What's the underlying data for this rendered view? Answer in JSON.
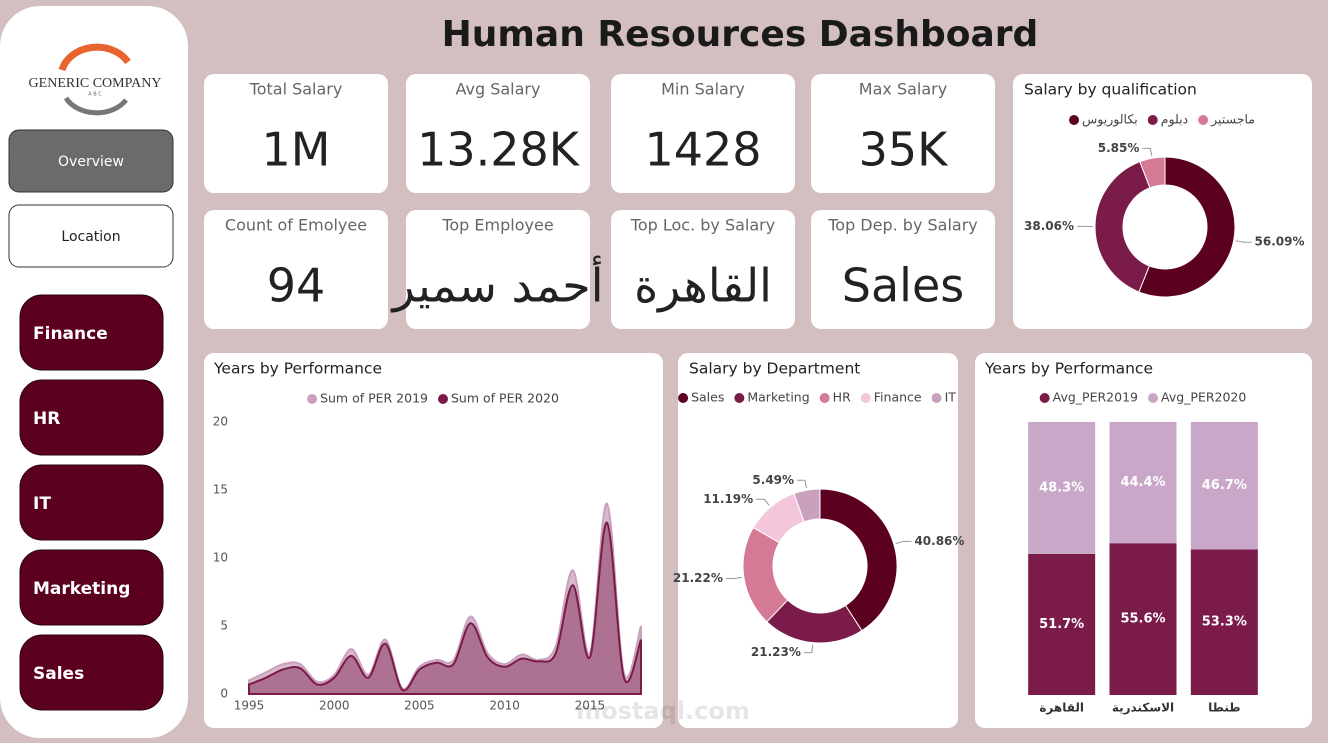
{
  "header": {
    "title": "Human Resources Dashboard"
  },
  "logo": {
    "name": "GENERIC COMPANY",
    "tagline": "A B C"
  },
  "nav": {
    "views": [
      "Overview",
      "Location"
    ],
    "departments": [
      "Finance",
      "HR",
      "IT",
      "Marketing",
      "Sales"
    ]
  },
  "kpis": [
    {
      "label": "Total Salary",
      "value": "1M"
    },
    {
      "label": "Avg Salary",
      "value": "13.28K"
    },
    {
      "label": "Min Salary",
      "value": 1428
    },
    {
      "label": "Max Salary",
      "value": "35K"
    },
    {
      "label": "Count of Emolyee",
      "value": 94
    },
    {
      "label": "Top Employee",
      "value": "أحمد سمير"
    },
    {
      "label": "Top Loc. by Salary",
      "value": "القاهرة"
    },
    {
      "label": "Top Dep. by Salary",
      "value": "Sales"
    }
  ],
  "watermark": "mostaql.com",
  "chart_data": [
    {
      "type": "pie",
      "donut": true,
      "title": "Salary by qualification",
      "categories": [
        "بكالوريوس",
        "دبلوم",
        "ماجستير"
      ],
      "values": [
        56.09,
        38.06,
        5.85
      ],
      "value_labels": [
        "56.09%",
        "38.06%",
        "5.85%"
      ],
      "colors": [
        "#5c0020",
        "#7a1b4a",
        "#d47a95"
      ]
    },
    {
      "type": "area",
      "title": "Years by Performance",
      "x": [
        1995,
        1996,
        1997,
        1998,
        1999,
        2000,
        2001,
        2002,
        2003,
        2004,
        2005,
        2006,
        2007,
        2008,
        2009,
        2010,
        2011,
        2012,
        2013,
        2014,
        2015,
        2016,
        2017,
        2018
      ],
      "xlim": [
        1995,
        2018
      ],
      "xticks": [
        1995,
        2000,
        2005,
        2010,
        2015
      ],
      "ylim": [
        0,
        20
      ],
      "yticks": [
        0,
        5,
        10,
        15,
        20
      ],
      "series": [
        {
          "name": "Sum of PER 2019",
          "color": "#c9a0bd",
          "values": [
            1.0,
            1.6,
            2.2,
            2.2,
            0.9,
            1.4,
            3.3,
            1.4,
            4.0,
            0.4,
            2.0,
            2.5,
            2.5,
            5.7,
            3.0,
            2.2,
            2.9,
            2.5,
            3.5,
            9.1,
            3.0,
            14.0,
            1.5,
            5.0
          ]
        },
        {
          "name": "Sum of PER 2020",
          "color": "#7a1b4a",
          "values": [
            0.7,
            1.2,
            1.8,
            1.9,
            0.7,
            1.2,
            2.8,
            1.2,
            3.7,
            0.3,
            1.8,
            2.3,
            2.2,
            5.2,
            2.7,
            2.0,
            2.6,
            2.4,
            3.0,
            8.0,
            2.7,
            12.6,
            1.2,
            4.0
          ]
        }
      ]
    },
    {
      "type": "pie",
      "donut": true,
      "title": "Salary by Department",
      "categories": [
        "Sales",
        "Marketing",
        "HR",
        "Finance",
        "IT"
      ],
      "values": [
        40.86,
        21.23,
        21.22,
        11.19,
        5.49
      ],
      "value_labels": [
        "40.86%",
        "21.23%",
        "21.22%",
        "11.19%",
        "5.49%"
      ],
      "colors": [
        "#5c0020",
        "#7a1b4a",
        "#d47a95",
        "#f3c6dc",
        "#c9a0bd"
      ]
    },
    {
      "type": "bar",
      "stacked": true,
      "title": "Years by Performance",
      "categories": [
        "القاهرة",
        "الاسكندرية",
        "طنطا"
      ],
      "ylim": [
        0,
        100
      ],
      "series": [
        {
          "name": "Avg_PER2019",
          "color": "#7a1b4a",
          "values": [
            51.7,
            55.6,
            53.3
          ],
          "value_labels": [
            "51.7%",
            "55.6%",
            "53.3%"
          ]
        },
        {
          "name": "Avg_PER2020",
          "color": "#c9a7c8",
          "values": [
            48.3,
            44.4,
            46.7
          ],
          "value_labels": [
            "48.3%",
            "44.4%",
            "46.7%"
          ]
        }
      ]
    }
  ]
}
